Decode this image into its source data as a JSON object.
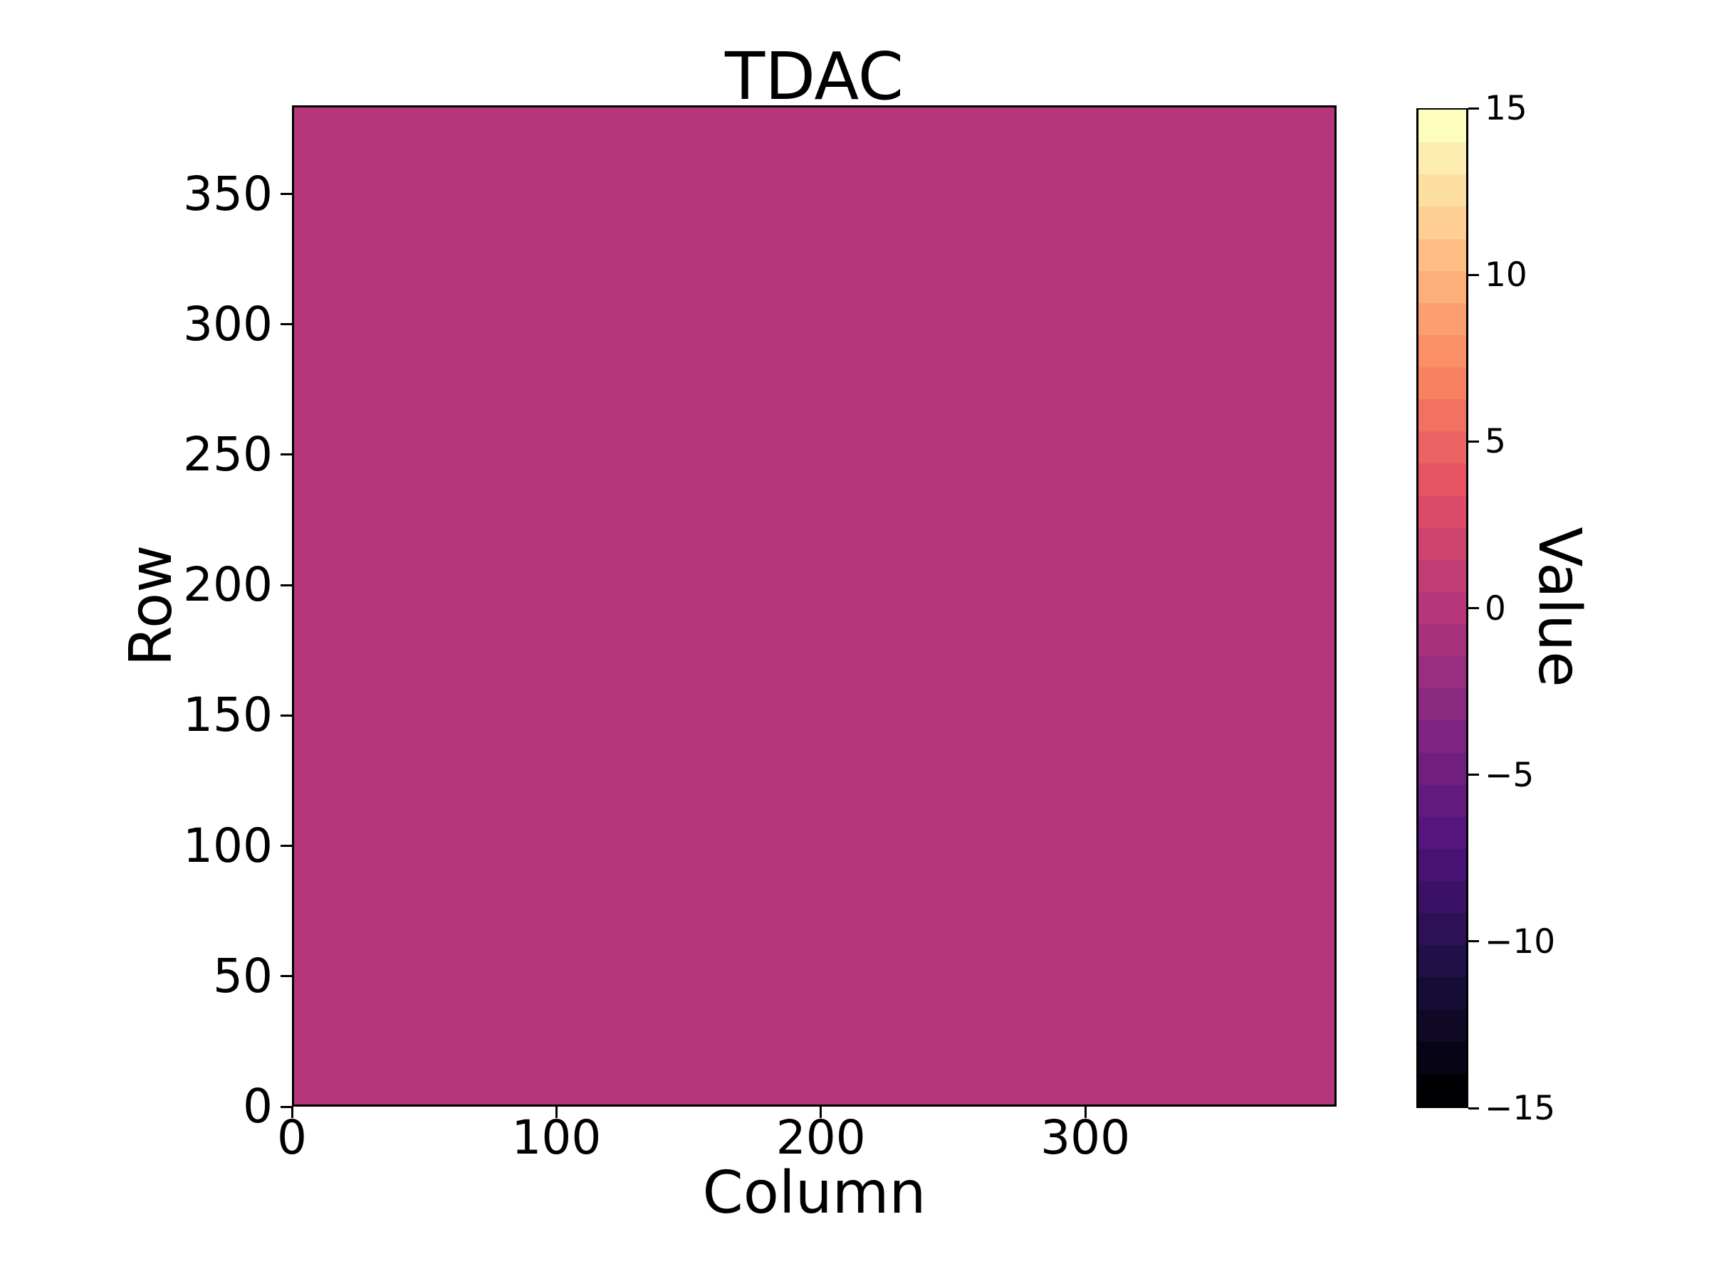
{
  "figure": {
    "background_color": "#ffffff",
    "text_color": "#000000"
  },
  "chart_data": {
    "type": "heatmap",
    "title": "TDAC",
    "xlabel": "Column",
    "ylabel": "Row",
    "x_tick_values": [
      0,
      100,
      200,
      300
    ],
    "x_tick_labels": [
      "0",
      "100",
      "200",
      "300"
    ],
    "y_tick_values": [
      0,
      50,
      100,
      150,
      200,
      250,
      300,
      350
    ],
    "y_tick_labels": [
      "0",
      "50",
      "100",
      "150",
      "200",
      "250",
      "300",
      "350"
    ],
    "xlim": [
      0,
      395
    ],
    "ylim": [
      0,
      384
    ],
    "grid": false,
    "data_description": "uniform map, every pixel has the same value",
    "constant_value": 0,
    "fill_color": "#b5367a",
    "colorbar": {
      "label": "Value",
      "vmin": -15,
      "vmax": 15,
      "tick_values": [
        15,
        10,
        5,
        0,
        -5,
        -10,
        -15
      ],
      "tick_labels": [
        "15",
        "10",
        "5",
        "0",
        "−5",
        "−10",
        "−15"
      ],
      "n_levels": 31,
      "colormap": "magma (discrete steps)",
      "colors_bottom_to_top": [
        "#000004",
        "#070415",
        "#0f0926",
        "#160d37",
        "#1f1048",
        "#2d1156",
        "#3b1165",
        "#481274",
        "#56157c",
        "#631a7d",
        "#701f7f",
        "#7e2481",
        "#8b2880",
        "#992d7e",
        "#a7327c",
        "#b5367a",
        "#c23d74",
        "#cf446e",
        "#db4b68",
        "#e65464",
        "#ec6363",
        "#f27262",
        "#f88161",
        "#fb9066",
        "#fc9f70",
        "#fdaf7a",
        "#febe84",
        "#fece92",
        "#fddea1",
        "#fdedb0",
        "#fcfdbf"
      ]
    }
  }
}
